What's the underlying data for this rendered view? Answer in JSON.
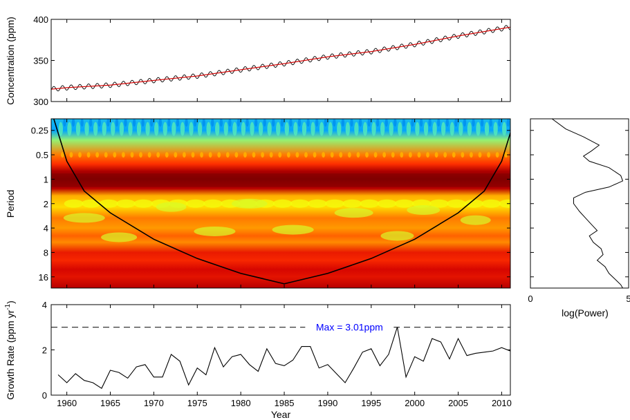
{
  "chart_data": [
    {
      "type": "line",
      "panel": "co2-concentration",
      "ylabel": "Concentration (ppm)",
      "xlim": [
        1958.2,
        2011
      ],
      "ylim": [
        300,
        400
      ],
      "yticks": [
        300,
        350,
        400
      ],
      "series": [
        {
          "role": "monthly",
          "color": "#000000",
          "seasonal_amplitude": 3,
          "x": [
            1958.2,
            1960,
            1965,
            1970,
            1975,
            1980,
            1985,
            1990,
            1995,
            2000,
            2005,
            2011
          ],
          "y": [
            315,
            316.9,
            320.0,
            325.7,
            331.1,
            338.7,
            346.1,
            354.4,
            360.8,
            369.5,
            379.8,
            390.5
          ]
        },
        {
          "role": "trend",
          "color": "#d40000",
          "x": [
            1958.2,
            1960,
            1965,
            1970,
            1975,
            1980,
            1985,
            1990,
            1995,
            2000,
            2005,
            2011
          ],
          "y": [
            315,
            316.9,
            320.0,
            325.7,
            331.1,
            338.7,
            346.1,
            354.4,
            360.8,
            369.5,
            379.8,
            390.5
          ]
        }
      ]
    },
    {
      "type": "heatmap",
      "panel": "wavelet-power-spectrum",
      "ylabel": "Period",
      "y_scale": "log2",
      "yticks": [
        0.25,
        0.5,
        1,
        2,
        4,
        8,
        16
      ],
      "ytick_labels": [
        "0.25",
        "0.5",
        "1",
        "2",
        "4",
        "8",
        "16"
      ],
      "xlim": [
        1958.2,
        2011
      ],
      "period_range": [
        0.18,
        22
      ],
      "power_profile": [
        {
          "period": 0.18,
          "level": 0.2
        },
        {
          "period": 0.25,
          "level": 0.15
        },
        {
          "period": 0.33,
          "level": 0.35
        },
        {
          "period": 0.5,
          "level": 0.62
        },
        {
          "period": 0.65,
          "level": 0.72
        },
        {
          "period": 0.8,
          "level": 0.92
        },
        {
          "period": 1.0,
          "level": 1.0
        },
        {
          "period": 1.3,
          "level": 0.9
        },
        {
          "period": 1.6,
          "level": 0.55
        },
        {
          "period": 2.2,
          "level": 0.48
        },
        {
          "period": 3.0,
          "level": 0.62
        },
        {
          "period": 4.0,
          "level": 0.58
        },
        {
          "period": 5.0,
          "level": 0.65
        },
        {
          "period": 6.0,
          "level": 0.6
        },
        {
          "period": 8.0,
          "level": 0.78
        },
        {
          "period": 10.0,
          "level": 0.74
        },
        {
          "period": 13.0,
          "level": 0.84
        },
        {
          "period": 16.0,
          "level": 0.8
        },
        {
          "period": 22.0,
          "level": 0.9
        }
      ],
      "colormap": [
        "#00208f",
        "#00a0ff",
        "#3fe6d0",
        "#ffff00",
        "#ffa000",
        "#ff3000",
        "#d00000",
        "#800000"
      ],
      "cone_of_influence": {
        "color": "#000000",
        "apex": {
          "year": 1985,
          "period": 19.5
        },
        "years": [
          1958.5,
          1960,
          1962,
          1965,
          1970,
          1975,
          1980,
          1985
        ],
        "periods": [
          0.18,
          0.6,
          1.4,
          2.6,
          5.5,
          9.5,
          14.5,
          19.5
        ]
      }
    },
    {
      "type": "line",
      "panel": "global-wavelet-spectrum",
      "xlabel": "log(Power)",
      "xlim": [
        0,
        5
      ],
      "xticks": [
        0,
        5
      ],
      "y_scale": "log2",
      "points": [
        {
          "period": 0.18,
          "logpower": 1.1
        },
        {
          "period": 0.24,
          "logpower": 1.8
        },
        {
          "period": 0.3,
          "logpower": 2.7
        },
        {
          "period": 0.38,
          "logpower": 3.5
        },
        {
          "period": 0.45,
          "logpower": 3.1
        },
        {
          "period": 0.52,
          "logpower": 2.7
        },
        {
          "period": 0.6,
          "logpower": 3.0
        },
        {
          "period": 0.72,
          "logpower": 4.0
        },
        {
          "period": 0.9,
          "logpower": 4.6
        },
        {
          "period": 1.05,
          "logpower": 4.7
        },
        {
          "period": 1.25,
          "logpower": 4.0
        },
        {
          "period": 1.45,
          "logpower": 2.8
        },
        {
          "period": 1.7,
          "logpower": 2.2
        },
        {
          "period": 2.0,
          "logpower": 2.2
        },
        {
          "period": 2.5,
          "logpower": 2.5
        },
        {
          "period": 3.0,
          "logpower": 2.8
        },
        {
          "period": 3.6,
          "logpower": 3.1
        },
        {
          "period": 4.3,
          "logpower": 3.4
        },
        {
          "period": 5.0,
          "logpower": 3.0
        },
        {
          "period": 6.0,
          "logpower": 3.2
        },
        {
          "period": 7.2,
          "logpower": 3.6
        },
        {
          "period": 8.5,
          "logpower": 3.7
        },
        {
          "period": 10.0,
          "logpower": 3.4
        },
        {
          "period": 12.0,
          "logpower": 3.8
        },
        {
          "period": 14.5,
          "logpower": 4.0
        },
        {
          "period": 17.0,
          "logpower": 4.3
        },
        {
          "period": 20.0,
          "logpower": 4.6
        },
        {
          "period": 22.0,
          "logpower": 4.7
        }
      ]
    },
    {
      "type": "line",
      "panel": "growth-rate",
      "xlabel": "Year",
      "ylabel": "Growth Rate (ppm yr",
      "ylabel_sup": "-1",
      "ylabel_tail": ")",
      "xlim": [
        1958.2,
        2011
      ],
      "ylim": [
        0,
        4
      ],
      "xticks": [
        1960,
        1965,
        1970,
        1975,
        1980,
        1985,
        1990,
        1995,
        2000,
        2005,
        2010
      ],
      "yticks": [
        0,
        2,
        4
      ],
      "reference_line": {
        "y": 3,
        "style": "dashed",
        "color": "#000000"
      },
      "annotation": {
        "text": "Max = 3.01ppm",
        "x": 1992.5,
        "y": 3.01,
        "color": "#0000ff"
      },
      "x": [
        1959,
        1960,
        1961,
        1962,
        1963,
        1964,
        1965,
        1966,
        1967,
        1968,
        1969,
        1970,
        1971,
        1972,
        1973,
        1974,
        1975,
        1976,
        1977,
        1978,
        1979,
        1980,
        1981,
        1982,
        1983,
        1984,
        1985,
        1986,
        1987,
        1988,
        1989,
        1990,
        1991,
        1992,
        1993,
        1994,
        1995,
        1996,
        1997,
        1998,
        1999,
        2000,
        2001,
        2002,
        2003,
        2004,
        2005,
        2006,
        2007,
        2008,
        2009,
        2010,
        2011
      ],
      "y": [
        0.9,
        0.55,
        0.95,
        0.65,
        0.55,
        0.3,
        1.1,
        1.0,
        0.75,
        1.25,
        1.35,
        0.8,
        0.8,
        1.8,
        1.5,
        0.45,
        1.2,
        0.9,
        2.1,
        1.25,
        1.7,
        1.8,
        1.35,
        1.05,
        2.05,
        1.4,
        1.3,
        1.55,
        2.15,
        2.15,
        1.2,
        1.35,
        0.95,
        0.55,
        1.2,
        1.9,
        2.05,
        1.3,
        1.8,
        3.01,
        0.8,
        1.7,
        1.5,
        2.5,
        2.35,
        1.6,
        2.5,
        1.75,
        1.85,
        1.9,
        1.95,
        2.1,
        1.95
      ]
    }
  ]
}
